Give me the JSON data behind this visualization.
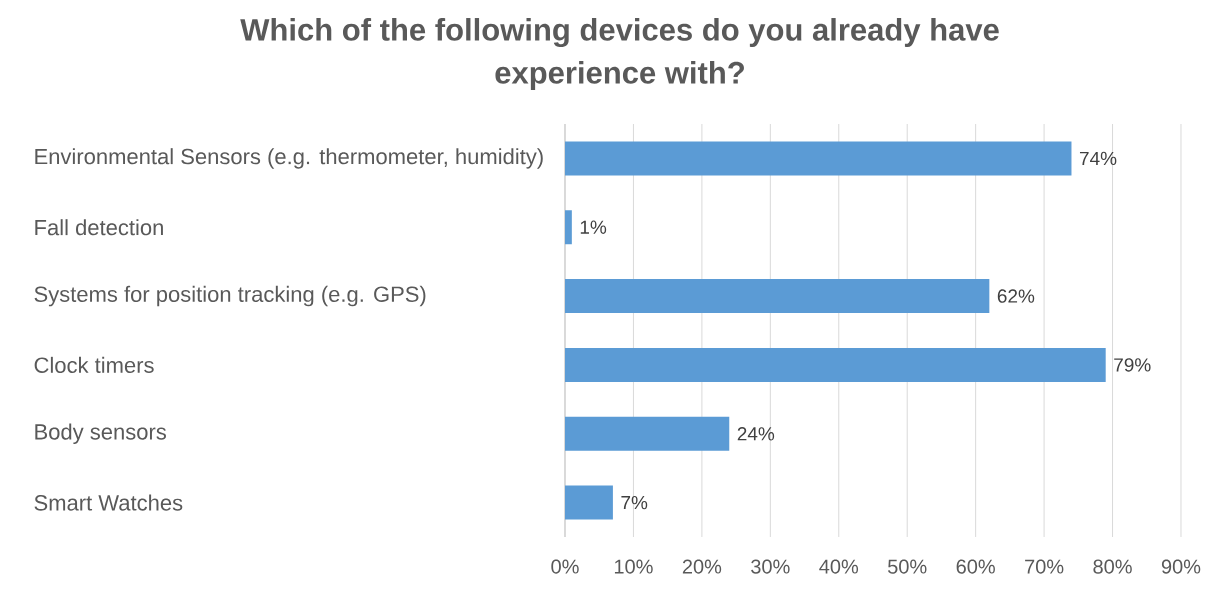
{
  "chart_data": {
    "type": "bar",
    "orientation": "horizontal",
    "title": "Which of the following devices do you already have experience with?",
    "categories": [
      "Environmental Sensors (e.g. thermometer, humidity)",
      "Fall detection",
      "Systems for position tracking (e.g. GPS)",
      "Clock timers",
      "Body sensors",
      "Smart Watches"
    ],
    "values": [
      74,
      1,
      62,
      79,
      24,
      7
    ],
    "value_labels": [
      "74%",
      "1%",
      "62%",
      "79%",
      "24%",
      "7%"
    ],
    "color": "#5b9bd5",
    "xlim": [
      0,
      90
    ],
    "xticks": [
      {
        "value": 0,
        "label": "0%"
      },
      {
        "value": 10,
        "label": "10%"
      },
      {
        "value": 20,
        "label": "20%"
      },
      {
        "value": 30,
        "label": "30%"
      },
      {
        "value": 40,
        "label": "40%"
      },
      {
        "value": 50,
        "label": "50%"
      },
      {
        "value": 60,
        "label": "60%"
      },
      {
        "value": 70,
        "label": "70%"
      },
      {
        "value": 80,
        "label": "80%"
      },
      {
        "value": 90,
        "label": "90%"
      }
    ],
    "grid": "x"
  }
}
